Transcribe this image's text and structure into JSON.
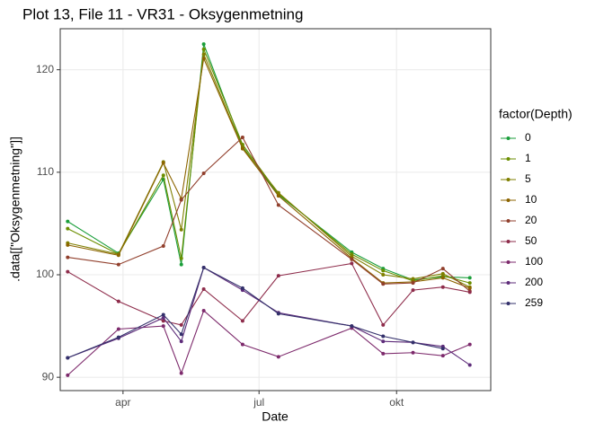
{
  "chart_data": {
    "type": "line",
    "title": "Plot 13, File 11 - VR31  -  Oksygenmetning",
    "x_label": "Date",
    "y_label": ".data[[\"Oksygenmetning\"]]",
    "legend_title": "factor(Depth)",
    "legend_position": "right",
    "grid": true,
    "x": [
      54,
      88,
      118,
      130,
      145,
      171,
      195,
      244,
      265,
      285,
      305,
      323
    ],
    "xlim": [
      49,
      337
    ],
    "xticks": [
      {
        "value": 91,
        "label": "apr"
      },
      {
        "value": 182,
        "label": "jul"
      },
      {
        "value": 274,
        "label": "okt"
      }
    ],
    "ylim": [
      88.7,
      124
    ],
    "yticks": [
      90,
      100,
      110,
      120
    ],
    "series": [
      {
        "name": "0",
        "color": "#1a9e3a",
        "values": [
          105.2,
          102.1,
          109.3,
          101.0,
          122.5,
          112.5,
          107.8,
          102.2,
          100.6,
          99.5,
          99.8,
          99.7
        ]
      },
      {
        "name": "1",
        "color": "#6b8e00",
        "values": [
          104.5,
          102.0,
          109.7,
          101.6,
          122.0,
          112.7,
          107.9,
          102.0,
          100.4,
          99.4,
          99.9,
          99.2
        ]
      },
      {
        "name": "5",
        "color": "#7f7f00",
        "values": [
          103.1,
          102.0,
          111.0,
          104.4,
          121.5,
          112.4,
          108.0,
          101.8,
          100.0,
          99.6,
          100.1,
          98.8
        ]
      },
      {
        "name": "10",
        "color": "#8c6400",
        "values": [
          102.9,
          101.9,
          110.9,
          107.4,
          121.1,
          112.3,
          107.7,
          101.6,
          99.2,
          99.3,
          99.7,
          98.7
        ]
      },
      {
        "name": "20",
        "color": "#913f2c",
        "values": [
          101.7,
          101.0,
          102.8,
          107.3,
          109.9,
          113.4,
          106.8,
          101.5,
          99.1,
          99.2,
          100.6,
          98.4
        ]
      },
      {
        "name": "50",
        "color": "#8e2c4b",
        "values": [
          100.3,
          97.4,
          95.5,
          95.1,
          98.6,
          95.5,
          99.9,
          101.1,
          95.1,
          98.5,
          98.8,
          98.3
        ]
      },
      {
        "name": "100",
        "color": "#7d2a6c",
        "values": [
          90.2,
          94.7,
          95.0,
          90.4,
          96.5,
          93.2,
          92.0,
          94.8,
          92.3,
          92.4,
          92.1,
          93.2
        ]
      },
      {
        "name": "200",
        "color": "#5e2c7a",
        "values": [
          91.9,
          93.8,
          95.8,
          93.5,
          100.7,
          98.5,
          96.3,
          95.0,
          93.5,
          93.4,
          93.0,
          91.2
        ]
      },
      {
        "name": "259",
        "color": "#33306b",
        "values": [
          91.9,
          93.9,
          96.1,
          94.2,
          100.7,
          98.7,
          96.2,
          95.0,
          94.0,
          93.4,
          92.8,
          null
        ]
      }
    ]
  }
}
